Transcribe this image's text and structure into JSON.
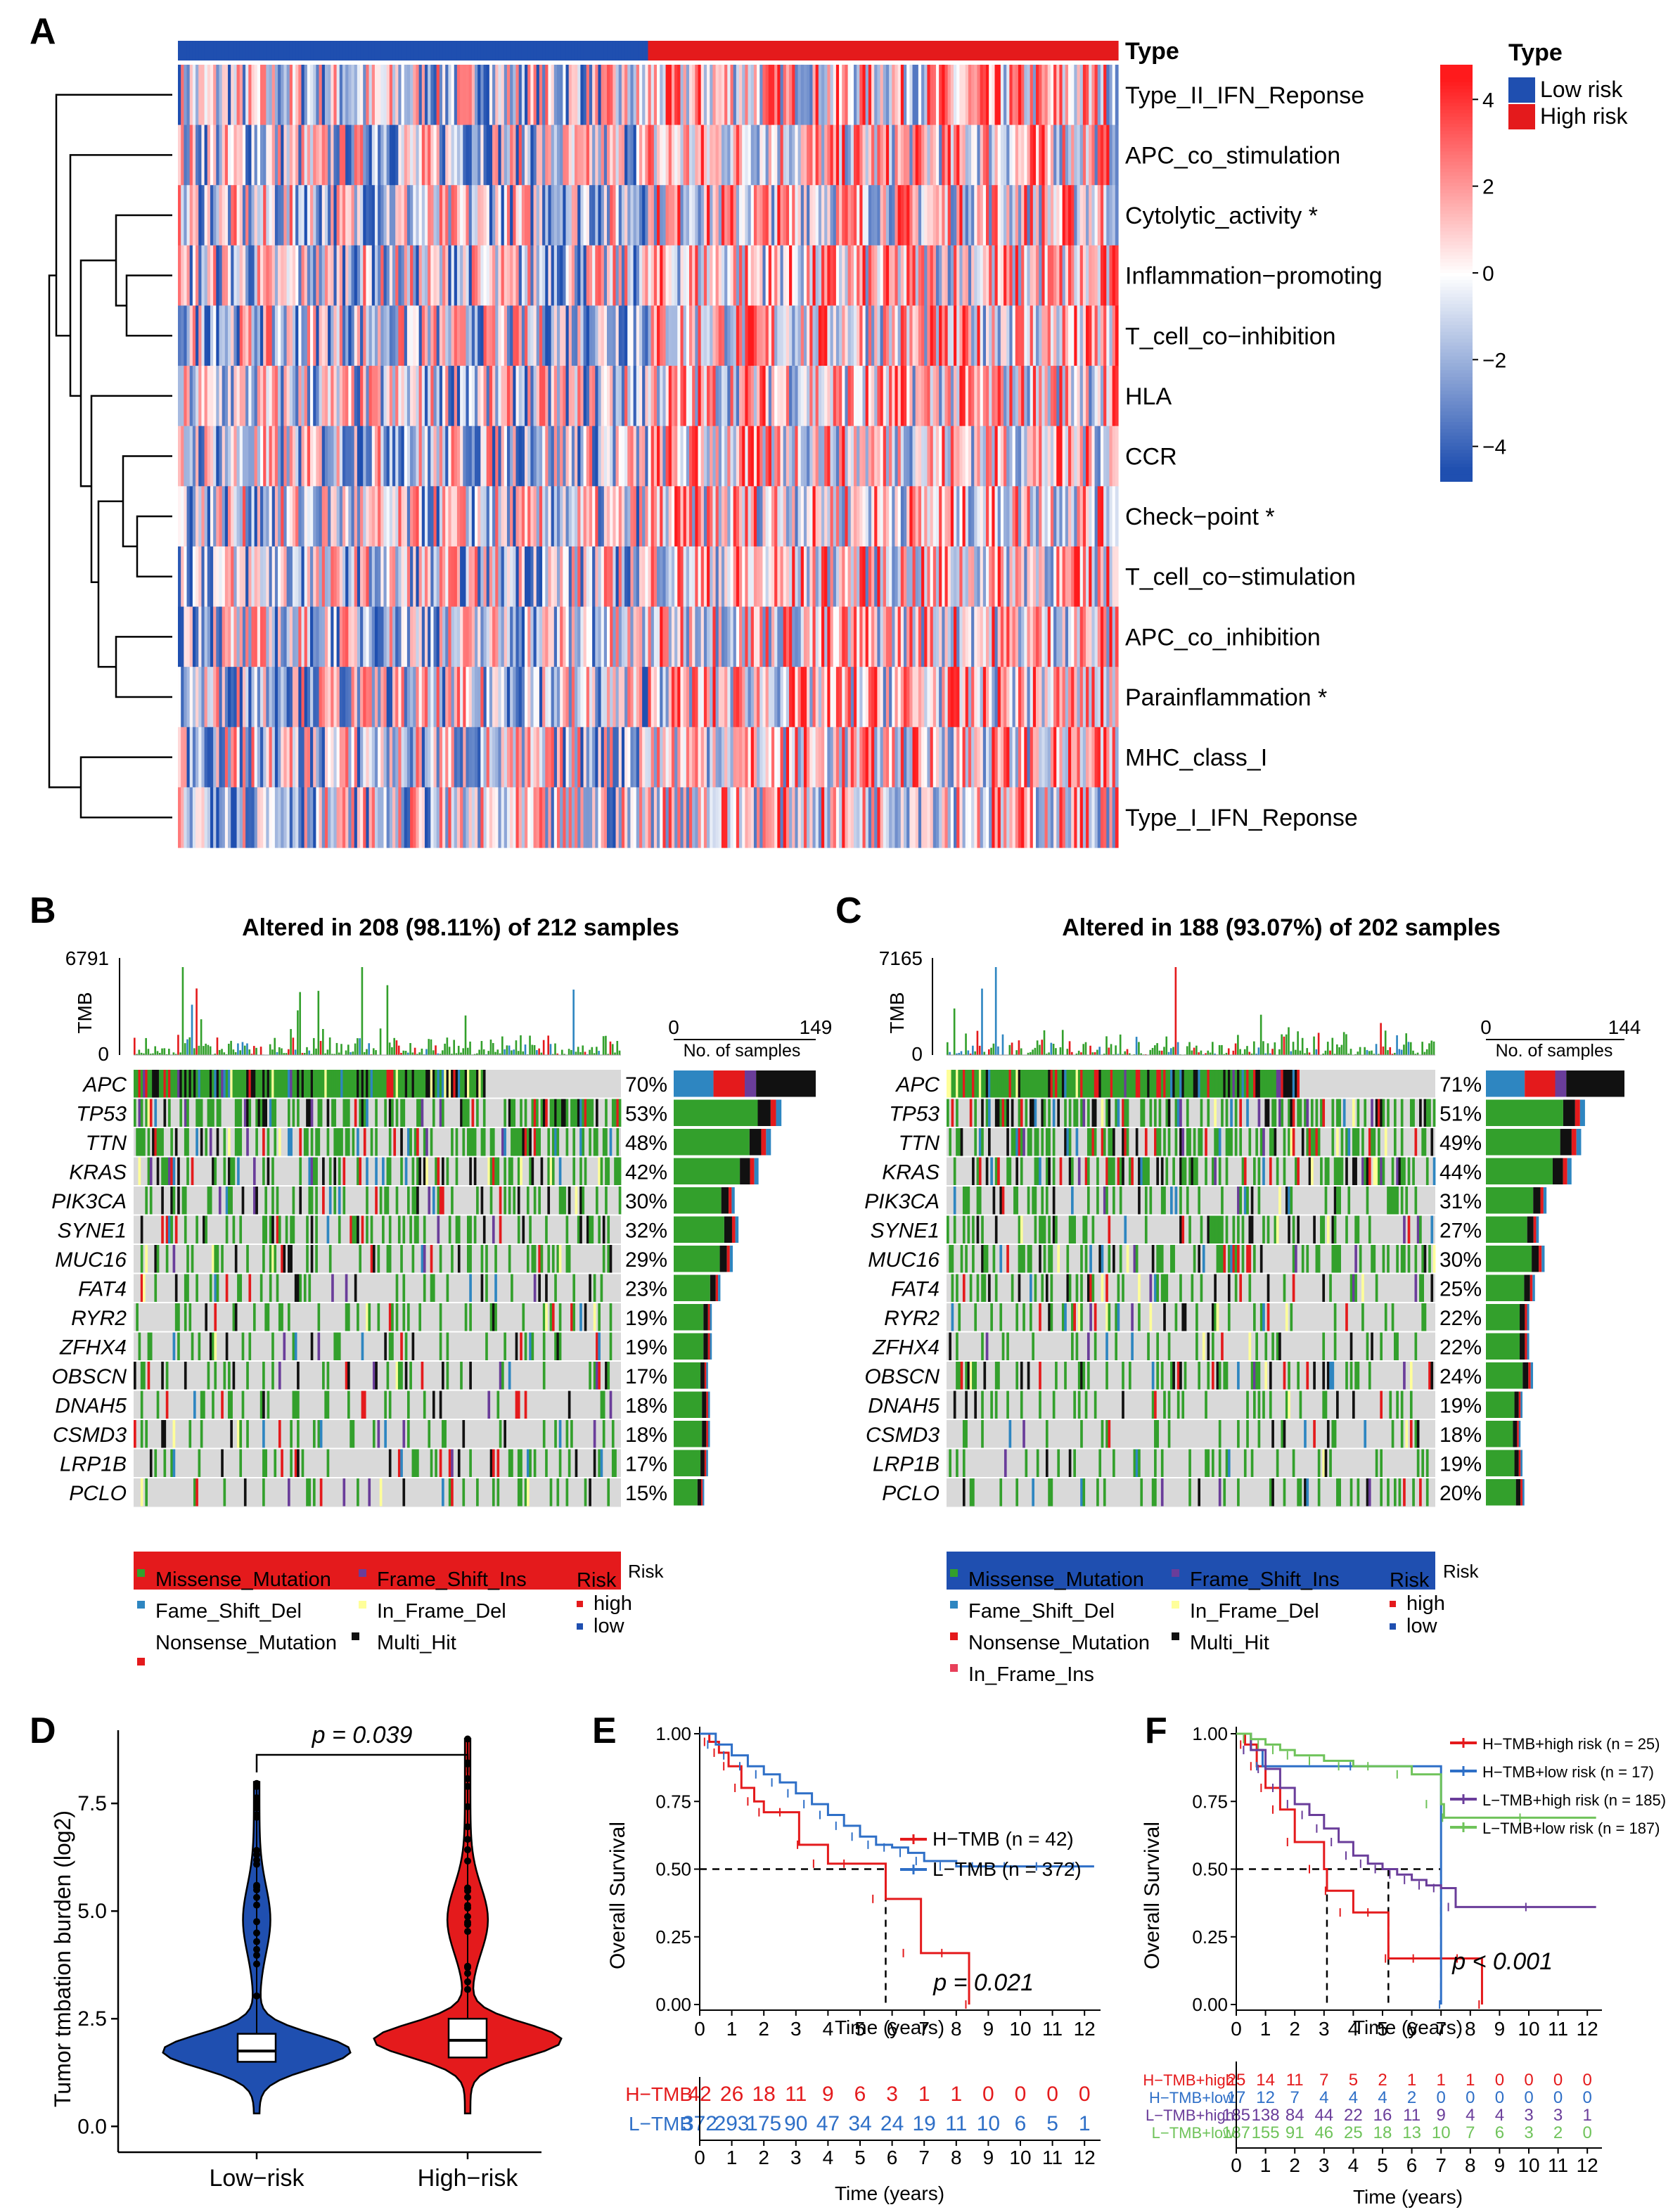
{
  "colors": {
    "red": "#e41a1c",
    "blue": "#1f4fb0",
    "green": "#33a02c",
    "black": "#111111",
    "gray": "#d3d3d3",
    "purple": "#6a3d9a",
    "lightblue": "#2e86c1",
    "yellow": "#ffff99",
    "pink": "#e8405a"
  },
  "chart_data": [
    {
      "panel": "A",
      "type": "heatmap",
      "annotation_label": "Type",
      "rows": [
        "Type_II_IFN_Reponse",
        "APC_co_stimulation",
        "Cytolytic_activity *",
        "Inflammation−promoting",
        "T_cell_co−inhibition",
        "HLA",
        "CCR",
        "Check−point *",
        "T_cell_co−stimulation",
        "APC_co_inhibition",
        "Parainflammation *",
        "MHC_class_I",
        "Type_I_IFN_Reponse"
      ],
      "groups": [
        "Low risk",
        "High risk"
      ],
      "legend_title": "Type",
      "scale_ticks": [
        "4",
        "2",
        "0",
        "−2",
        "−4"
      ],
      "value_range": [
        -5,
        5
      ]
    },
    {
      "panel": "B",
      "type": "oncoplot",
      "title": "Altered in 208 (98.11%) of 212 samples",
      "tmb_label": "TMB",
      "tmb_max": "6791",
      "tmb_min": "0",
      "bar_min": "0",
      "bar_max": "149",
      "bar_axis_label": "No. of samples",
      "genes": [
        "APC",
        "TP53",
        "TTN",
        "KRAS",
        "PIK3CA",
        "SYNE1",
        "MUC16",
        "FAT4",
        "RYR2",
        "ZFHX4",
        "OBSCN",
        "DNAH5",
        "CSMD3",
        "LRP1B",
        "PCLO"
      ],
      "percents": [
        "70%",
        "53%",
        "48%",
        "42%",
        "30%",
        "32%",
        "29%",
        "23%",
        "19%",
        "19%",
        "17%",
        "18%",
        "18%",
        "17%",
        "15%"
      ],
      "bar_counts": [
        149,
        113,
        102,
        89,
        64,
        68,
        62,
        49,
        40,
        40,
        36,
        38,
        38,
        36,
        32
      ],
      "risk_label": "Risk",
      "risk_group": "high",
      "legend": [
        "Missense_Mutation",
        "Fame_Shift_Del",
        "Nonsense_Mutation",
        "Frame_Shift_Ins",
        "In_Frame_Del",
        "Multi_Hit"
      ],
      "legend_risk_title": "Risk",
      "legend_risk": [
        "high",
        "low"
      ]
    },
    {
      "panel": "C",
      "type": "oncoplot",
      "title": "Altered in 188 (93.07%) of 202 samples",
      "tmb_label": "TMB",
      "tmb_max": "7165",
      "tmb_min": "0",
      "bar_min": "0",
      "bar_max": "144",
      "bar_axis_label": "No. of samples",
      "genes": [
        "APC",
        "TP53",
        "TTN",
        "KRAS",
        "PIK3CA",
        "SYNE1",
        "MUC16",
        "FAT4",
        "RYR2",
        "ZFHX4",
        "OBSCN",
        "DNAH5",
        "CSMD3",
        "LRP1B",
        "PCLO"
      ],
      "percents": [
        "71%",
        "51%",
        "49%",
        "44%",
        "31%",
        "27%",
        "30%",
        "25%",
        "22%",
        "22%",
        "24%",
        "19%",
        "18%",
        "19%",
        "20%"
      ],
      "bar_counts": [
        144,
        103,
        99,
        89,
        63,
        55,
        61,
        51,
        45,
        45,
        49,
        38,
        36,
        38,
        40
      ],
      "risk_label": "Risk",
      "risk_group": "low",
      "legend": [
        "Missense_Mutation",
        "Fame_Shift_Del",
        "Nonsense_Mutation",
        "In_Frame_Ins",
        "Frame_Shift_Ins",
        "In_Frame_Del",
        "Multi_Hit"
      ],
      "legend_risk_title": "Risk",
      "legend_risk": [
        "high",
        "low"
      ]
    },
    {
      "panel": "D",
      "type": "violin",
      "categories": [
        "Low−risk",
        "High−risk"
      ],
      "ylabel": "Tumor tmbation burden (log2)",
      "yticks": [
        "0.0",
        "2.5",
        "5.0",
        "7.5"
      ],
      "ylim": [
        -0.6,
        9.2
      ],
      "medians": [
        1.75,
        2.0
      ],
      "q1": [
        1.5,
        1.6
      ],
      "q3": [
        2.15,
        2.5
      ],
      "max": [
        8.0,
        9.0
      ],
      "pvalue": "p = 0.039"
    },
    {
      "panel": "E",
      "type": "line",
      "xlabel": "Time (years)",
      "ylabel": "Overall Survival",
      "xticks": [
        "0",
        "1",
        "2",
        "3",
        "4",
        "5",
        "6",
        "7",
        "8",
        "9",
        "10",
        "11",
        "12"
      ],
      "yticks": [
        "0.00",
        "0.25",
        "0.50",
        "0.75",
        "1.00"
      ],
      "xlim": [
        0,
        12.5
      ],
      "ylim": [
        0,
        1
      ],
      "series": [
        {
          "name": "H−TMB (n = 42)",
          "color": "#e41a1c",
          "x": [
            0,
            0.3,
            0.6,
            0.9,
            1.3,
            1.7,
            2.0,
            3.0,
            3.1,
            4.0,
            5.0,
            5.8,
            6.9,
            8.2,
            8.4
          ],
          "y": [
            1.0,
            0.97,
            0.93,
            0.88,
            0.8,
            0.75,
            0.71,
            0.71,
            0.59,
            0.52,
            0.52,
            0.39,
            0.19,
            0.19,
            0.0
          ]
        },
        {
          "name": "L−TMB (n = 372)",
          "color": "#2e6fc7",
          "x": [
            0,
            0.5,
            1,
            1.5,
            2,
            2.5,
            3,
            3.5,
            4,
            4.5,
            5,
            5.5,
            6,
            6.5,
            7,
            8,
            9,
            10,
            11,
            12.3
          ],
          "y": [
            1.0,
            0.96,
            0.92,
            0.88,
            0.85,
            0.82,
            0.78,
            0.74,
            0.7,
            0.66,
            0.62,
            0.59,
            0.58,
            0.56,
            0.53,
            0.51,
            0.51,
            0.51,
            0.51,
            0.51
          ]
        }
      ],
      "pvalue": "p = 0.021",
      "risk_table": {
        "rows": [
          "H−TMB",
          "L−TMB"
        ],
        "values": [
          [
            "42",
            "26",
            "18",
            "11",
            "9",
            "6",
            "3",
            "1",
            "1",
            "0",
            "0",
            "0",
            "0"
          ],
          [
            "372",
            "293",
            "175",
            "90",
            "47",
            "34",
            "24",
            "19",
            "11",
            "10",
            "6",
            "5",
            "1"
          ]
        ]
      }
    },
    {
      "panel": "F",
      "type": "line",
      "xlabel": "Time (years)",
      "ylabel": "Overall Survival",
      "xticks": [
        "0",
        "1",
        "2",
        "3",
        "4",
        "5",
        "6",
        "7",
        "8",
        "9",
        "10",
        "11",
        "12"
      ],
      "yticks": [
        "0.00",
        "0.25",
        "0.50",
        "0.75",
        "1.00"
      ],
      "xlim": [
        0,
        12.5
      ],
      "ylim": [
        0,
        1
      ],
      "series": [
        {
          "name": "H−TMB+high risk (n = 25)",
          "color": "#e41a1c",
          "x": [
            0,
            0.3,
            0.7,
            1.0,
            1.5,
            2.0,
            3.0,
            3.1,
            4.0,
            5.0,
            5.2,
            6.9,
            8.2,
            8.4
          ],
          "y": [
            1.0,
            0.96,
            0.88,
            0.8,
            0.72,
            0.6,
            0.5,
            0.42,
            0.34,
            0.34,
            0.17,
            0.17,
            0.17,
            0.0
          ]
        },
        {
          "name": "H−TMB+low risk (n = 17)",
          "color": "#2e6fc7",
          "x": [
            0,
            0.5,
            0.9,
            6.9,
            7.0
          ],
          "y": [
            1.0,
            0.94,
            0.88,
            0.88,
            0.0
          ]
        },
        {
          "name": "L−TMB+high risk (n = 185)",
          "color": "#6a3d9a",
          "x": [
            0,
            0.5,
            1,
            1.5,
            2,
            2.5,
            3,
            3.5,
            4,
            4.5,
            5,
            5.5,
            6,
            6.5,
            7,
            7.5,
            12.3
          ],
          "y": [
            1.0,
            0.94,
            0.87,
            0.8,
            0.74,
            0.7,
            0.65,
            0.6,
            0.55,
            0.52,
            0.5,
            0.48,
            0.46,
            0.44,
            0.43,
            0.36,
            0.36
          ]
        },
        {
          "name": "L−TMB+low risk (n = 187)",
          "color": "#6fc35a",
          "x": [
            0,
            0.5,
            1,
            1.5,
            2,
            3,
            4,
            5,
            6,
            7,
            7.1,
            12.3
          ],
          "y": [
            1.0,
            0.98,
            0.96,
            0.94,
            0.92,
            0.9,
            0.88,
            0.88,
            0.85,
            0.74,
            0.69,
            0.69
          ]
        }
      ],
      "pvalue": "p < 0.001",
      "risk_table": {
        "rows": [
          "H−TMB+high",
          "H−TMB+low",
          "L−TMB+high",
          "L−TMB+low"
        ],
        "values": [
          [
            "25",
            "14",
            "11",
            "7",
            "5",
            "2",
            "1",
            "1",
            "1",
            "0",
            "0",
            "0",
            "0"
          ],
          [
            "17",
            "12",
            "7",
            "4",
            "4",
            "4",
            "2",
            "0",
            "0",
            "0",
            "0",
            "0",
            "0"
          ],
          [
            "185",
            "138",
            "84",
            "44",
            "22",
            "16",
            "11",
            "9",
            "4",
            "4",
            "3",
            "3",
            "1"
          ],
          [
            "187",
            "155",
            "91",
            "46",
            "25",
            "18",
            "13",
            "10",
            "7",
            "6",
            "3",
            "2",
            "0"
          ]
        ]
      }
    }
  ],
  "panel_labels": [
    "A",
    "B",
    "C",
    "D",
    "E",
    "F"
  ]
}
